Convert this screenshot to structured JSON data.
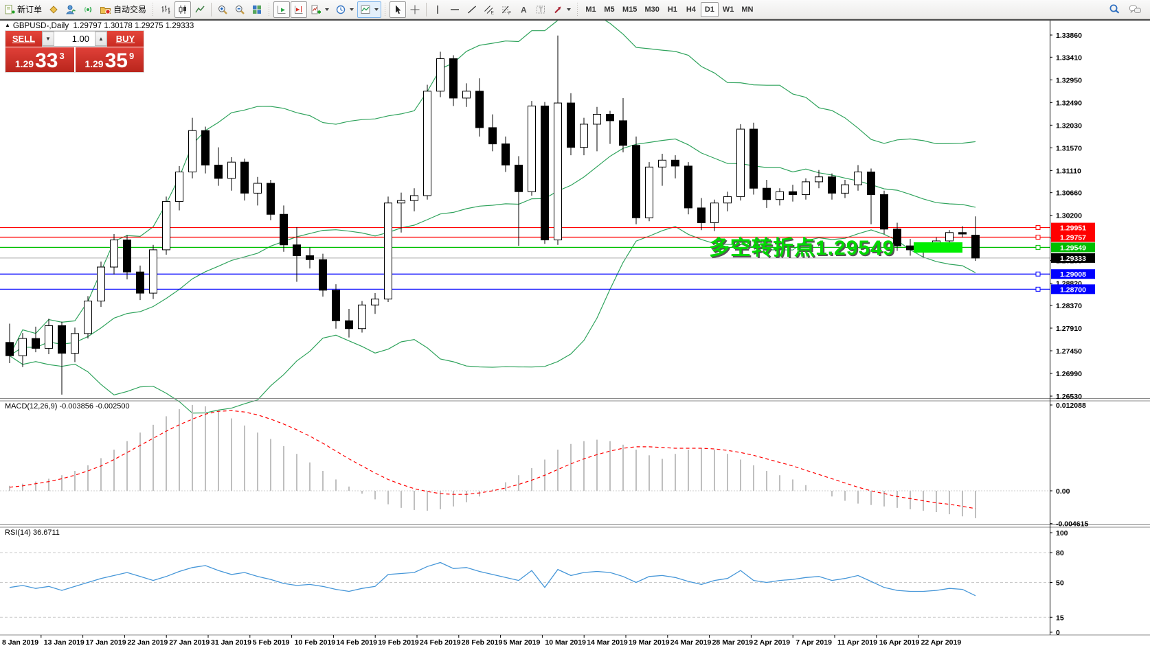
{
  "toolbar": {
    "new_order_label": "新订单",
    "autotrading_label": "自动交易",
    "timeframes": [
      "M1",
      "M5",
      "M15",
      "M30",
      "H1",
      "H4",
      "D1",
      "W1",
      "MN"
    ],
    "active_timeframe": "D1"
  },
  "window": {
    "symbol_title": "GBPUSD-,Daily",
    "ohlc_title": "1.29797 1.30178 1.29275 1.29333"
  },
  "trade_panel": {
    "sell_label": "SELL",
    "buy_label": "BUY",
    "volume": "1.00",
    "sell_price": {
      "small": "1.29",
      "big": "33",
      "sup": "3"
    },
    "buy_price": {
      "small": "1.29",
      "big": "35",
      "sup": "9"
    }
  },
  "annotation": {
    "text": "多空转折点1.29549",
    "color": "#00d800"
  },
  "panels": {
    "macd_label": "MACD(12,26,9) -0.003856 -0.002500",
    "rsi_label": "RSI(14) 36.6711"
  },
  "price_axis": {
    "ticks": [
      "1.33860",
      "1.33410",
      "1.32950",
      "1.32490",
      "1.32030",
      "1.31570",
      "1.31110",
      "1.30660",
      "1.30200",
      "1.29740",
      "1.29280",
      "1.28820",
      "1.28370",
      "1.27910",
      "1.27450",
      "1.26990",
      "1.26530"
    ],
    "hlines": [
      {
        "label": "1.29951",
        "value": 1.29951,
        "color": "#FF0000"
      },
      {
        "label": "1.29757",
        "value": 1.29757,
        "color": "#FF0000"
      },
      {
        "label": "1.29549",
        "value": 1.29549,
        "color": "#00BF00"
      },
      {
        "label": "1.29008",
        "value": 1.29008,
        "color": "#0000FF"
      },
      {
        "label": "1.28700",
        "value": 1.287,
        "color": "#0000FF"
      }
    ],
    "current": {
      "label": "1.29333",
      "value": 1.29333,
      "badge_color": "#000000",
      "line_color": "#aaaaaa"
    }
  },
  "macd_axis": {
    "ticks": [
      {
        "label": "0.012088",
        "value": 0.012088
      },
      {
        "label": "0.00",
        "value": 0
      },
      {
        "label": "-0.004615",
        "value": -0.004615
      }
    ]
  },
  "rsi_axis": {
    "ticks": [
      {
        "label": "100",
        "value": 100
      },
      {
        "label": "80",
        "value": 80
      },
      {
        "label": "50",
        "value": 50
      },
      {
        "label": "15",
        "value": 15
      },
      {
        "label": "0",
        "value": 0
      }
    ],
    "levels": [
      80,
      50,
      15
    ]
  },
  "chart_data": {
    "type": "candlestick+indicators",
    "symbol": "GBPUSD",
    "period": "Daily",
    "legend": [
      "Bollinger Bands (green)",
      "MACD(12,26,9)",
      "RSI(14)"
    ],
    "date_labels": [
      "8 Jan 2019",
      "13 Jan 2019",
      "17 Jan 2019",
      "22 Jan 2019",
      "27 Jan 2019",
      "31 Jan 2019",
      "5 Feb 2019",
      "10 Feb 2019",
      "14 Feb 2019",
      "19 Feb 2019",
      "24 Feb 2019",
      "28 Feb 2019",
      "5 Mar 2019",
      "10 Mar 2019",
      "14 Mar 2019",
      "19 Mar 2019",
      "24 Mar 2019",
      "28 Mar 2019",
      "2 Apr 2019",
      "7 Apr 2019",
      "11 Apr 2019",
      "16 Apr 2019",
      "22 Apr 2019"
    ],
    "ylim_price": [
      1.26488,
      1.34153
    ],
    "ylim_macd": [
      -0.004615,
      0.012088
    ],
    "ylim_rsi": [
      0,
      100
    ],
    "candles": [
      [
        1.2762,
        1.28,
        1.272,
        1.2735
      ],
      [
        1.2735,
        1.2781,
        1.2712,
        1.277
      ],
      [
        1.277,
        1.2794,
        1.2742,
        1.275
      ],
      [
        1.275,
        1.281,
        1.2738,
        1.2796
      ],
      [
        1.2796,
        1.2804,
        1.2656,
        1.274
      ],
      [
        1.274,
        1.2792,
        1.2722,
        1.278
      ],
      [
        1.278,
        1.2856,
        1.277,
        1.2846
      ],
      [
        1.2846,
        1.2926,
        1.2834,
        1.2915
      ],
      [
        1.2915,
        1.2982,
        1.29,
        1.297
      ],
      [
        1.297,
        1.298,
        1.289,
        1.2905
      ],
      [
        1.2905,
        1.2918,
        1.2848,
        1.2862
      ],
      [
        1.2862,
        1.296,
        1.285,
        1.295
      ],
      [
        1.295,
        1.3058,
        1.294,
        1.3048
      ],
      [
        1.3048,
        1.312,
        1.303,
        1.3108
      ],
      [
        1.3108,
        1.3218,
        1.3095,
        1.3192
      ],
      [
        1.3192,
        1.32,
        1.3105,
        1.3122
      ],
      [
        1.3122,
        1.3158,
        1.308,
        1.3095
      ],
      [
        1.3095,
        1.3138,
        1.307,
        1.3128
      ],
      [
        1.3128,
        1.3135,
        1.305,
        1.3065
      ],
      [
        1.3065,
        1.3098,
        1.304,
        1.3085
      ],
      [
        1.3085,
        1.3092,
        1.301,
        1.3022
      ],
      [
        1.3022,
        1.304,
        1.2946,
        1.296
      ],
      [
        1.296,
        1.2996,
        1.2885,
        1.2938
      ],
      [
        1.2938,
        1.2955,
        1.2912,
        1.293
      ],
      [
        1.293,
        1.2942,
        1.2855,
        1.2868
      ],
      [
        1.2868,
        1.288,
        1.279,
        1.2806
      ],
      [
        1.2806,
        1.283,
        1.2772,
        1.279
      ],
      [
        1.279,
        1.2846,
        1.2782,
        1.2838
      ],
      [
        1.2838,
        1.2862,
        1.282,
        1.285
      ],
      [
        1.285,
        1.3058,
        1.2844,
        1.3045
      ],
      [
        1.3045,
        1.3066,
        1.2985,
        1.305
      ],
      [
        1.305,
        1.3075,
        1.3028,
        1.306
      ],
      [
        1.306,
        1.3285,
        1.3052,
        1.3272
      ],
      [
        1.3272,
        1.3352,
        1.326,
        1.3338
      ],
      [
        1.3338,
        1.3345,
        1.3242,
        1.3258
      ],
      [
        1.3258,
        1.3288,
        1.324,
        1.3272
      ],
      [
        1.3272,
        1.3298,
        1.318,
        1.3198
      ],
      [
        1.3198,
        1.3225,
        1.315,
        1.3165
      ],
      [
        1.3165,
        1.318,
        1.3108,
        1.3122
      ],
      [
        1.3122,
        1.314,
        1.2958,
        1.3068
      ],
      [
        1.3068,
        1.3252,
        1.306,
        1.3242
      ],
      [
        1.3242,
        1.325,
        1.2962,
        1.297
      ],
      [
        1.297,
        1.3385,
        1.296,
        1.3248
      ],
      [
        1.3248,
        1.3268,
        1.3142,
        1.3158
      ],
      [
        1.3158,
        1.3218,
        1.3142,
        1.3205
      ],
      [
        1.3205,
        1.324,
        1.315,
        1.3225
      ],
      [
        1.3225,
        1.3232,
        1.3165,
        1.3212
      ],
      [
        1.3212,
        1.3258,
        1.3148,
        1.3162
      ],
      [
        1.3162,
        1.318,
        1.3002,
        1.3015
      ],
      [
        1.3015,
        1.3128,
        1.3008,
        1.3118
      ],
      [
        1.3118,
        1.3145,
        1.308,
        1.3132
      ],
      [
        1.3132,
        1.3142,
        1.3095,
        1.312
      ],
      [
        1.312,
        1.3128,
        1.3022,
        1.3035
      ],
      [
        1.3035,
        1.3055,
        1.299,
        1.3005
      ],
      [
        1.3005,
        1.3052,
        1.2988,
        1.3045
      ],
      [
        1.3045,
        1.3068,
        1.3028,
        1.3058
      ],
      [
        1.3058,
        1.3205,
        1.305,
        1.3195
      ],
      [
        1.3195,
        1.3208,
        1.3062,
        1.3075
      ],
      [
        1.3075,
        1.3092,
        1.3035,
        1.3052
      ],
      [
        1.3052,
        1.3075,
        1.304,
        1.3068
      ],
      [
        1.3068,
        1.3082,
        1.3048,
        1.3062
      ],
      [
        1.3062,
        1.3095,
        1.3052,
        1.3088
      ],
      [
        1.3088,
        1.3112,
        1.3075,
        1.3098
      ],
      [
        1.3098,
        1.3105,
        1.3052,
        1.3065
      ],
      [
        1.3065,
        1.3092,
        1.3055,
        1.3082
      ],
      [
        1.3082,
        1.3122,
        1.307,
        1.3108
      ],
      [
        1.3108,
        1.3115,
        1.3002,
        1.3062
      ],
      [
        1.3062,
        1.307,
        1.2982,
        1.2992
      ],
      [
        1.2992,
        1.3005,
        1.2948,
        1.2958
      ],
      [
        1.2958,
        1.2972,
        1.2938,
        1.295
      ],
      [
        1.295,
        1.2962,
        1.2935,
        1.2948
      ],
      [
        1.2948,
        1.2975,
        1.2945,
        1.2968
      ],
      [
        1.2968,
        1.299,
        1.2958,
        1.2985
      ],
      [
        1.2985,
        1.2998,
        1.2975,
        1.2982
      ],
      [
        1.29797,
        1.30178,
        1.29275,
        1.29333
      ]
    ],
    "bollinger": {
      "period": 20,
      "deviation": 2,
      "color": "#2fa35c"
    },
    "macd": {
      "histogram": [
        0.0007,
        0.001,
        0.0013,
        0.0017,
        0.0022,
        0.0028,
        0.0036,
        0.0046,
        0.0058,
        0.007,
        0.0082,
        0.0093,
        0.0105,
        0.0115,
        0.0121,
        0.0119,
        0.0112,
        0.0102,
        0.0092,
        0.0082,
        0.0073,
        0.0063,
        0.0052,
        0.004,
        0.0028,
        0.0016,
        0.0006,
        -0.0004,
        -0.0012,
        -0.0019,
        -0.0024,
        -0.0027,
        -0.0028,
        -0.0026,
        -0.0022,
        -0.0016,
        -0.0008,
        0.0002,
        0.0012,
        0.0022,
        0.0032,
        0.0044,
        0.0058,
        0.0066,
        0.007,
        0.0072,
        0.007,
        0.0065,
        0.0058,
        0.005,
        0.0045,
        0.0052,
        0.0058,
        0.006,
        0.0058,
        0.0052,
        0.0044,
        0.0036,
        0.0028,
        0.0022,
        0.0016,
        0.0008,
        0.0,
        -0.0008,
        -0.0014,
        -0.0018,
        -0.002,
        -0.0022,
        -0.0024,
        -0.0026,
        -0.0028,
        -0.003,
        -0.0033,
        -0.0036,
        -0.003856
      ],
      "signal": [
        0.0005,
        0.0007,
        0.001,
        0.0013,
        0.0017,
        0.0022,
        0.0028,
        0.0035,
        0.0044,
        0.0054,
        0.0064,
        0.0074,
        0.0084,
        0.0093,
        0.0101,
        0.0108,
        0.0112,
        0.0113,
        0.0111,
        0.0107,
        0.0101,
        0.0094,
        0.0086,
        0.0077,
        0.0067,
        0.0056,
        0.0045,
        0.0035,
        0.0025,
        0.0016,
        0.0009,
        0.0003,
        -0.0001,
        -0.0004,
        -0.0005,
        -0.0005,
        -0.0003,
        0.0,
        0.0004,
        0.0009,
        0.0015,
        0.0022,
        0.003,
        0.0038,
        0.0045,
        0.0051,
        0.0056,
        0.006,
        0.0062,
        0.0062,
        0.0061,
        0.006,
        0.006,
        0.006,
        0.0059,
        0.0057,
        0.0054,
        0.005,
        0.0045,
        0.004,
        0.0035,
        0.0029,
        0.0023,
        0.0017,
        0.0011,
        0.0005,
        0.0,
        -0.0004,
        -0.0008,
        -0.0011,
        -0.0014,
        -0.0017,
        -0.0019,
        -0.0022,
        -0.0025
      ],
      "current_values": [
        -0.003856,
        -0.0025
      ],
      "hist_color": "#bfbfbf",
      "signal_color": "#FF0000"
    },
    "rsi": {
      "values": [
        45,
        47,
        44,
        46,
        42,
        46,
        50,
        54,
        57,
        60,
        56,
        52,
        56,
        61,
        65,
        67,
        62,
        58,
        60,
        56,
        53,
        49,
        47,
        48,
        46,
        43,
        41,
        44,
        46,
        58,
        59,
        60,
        66,
        70,
        64,
        65,
        61,
        58,
        55,
        52,
        62,
        45,
        63,
        57,
        60,
        61,
        60,
        56,
        50,
        56,
        57,
        55,
        51,
        48,
        52,
        54,
        62,
        52,
        50,
        52,
        53,
        55,
        56,
        52,
        54,
        57,
        51,
        45,
        42,
        41,
        41,
        42,
        44,
        43,
        36.7
      ],
      "current": 36.6711,
      "color": "#4596d8"
    },
    "highlight_box": {
      "bar_start": 69,
      "bar_end": 73,
      "price_top": 1.29652,
      "price_bottom": 1.29443,
      "color": "#00ee00"
    }
  }
}
